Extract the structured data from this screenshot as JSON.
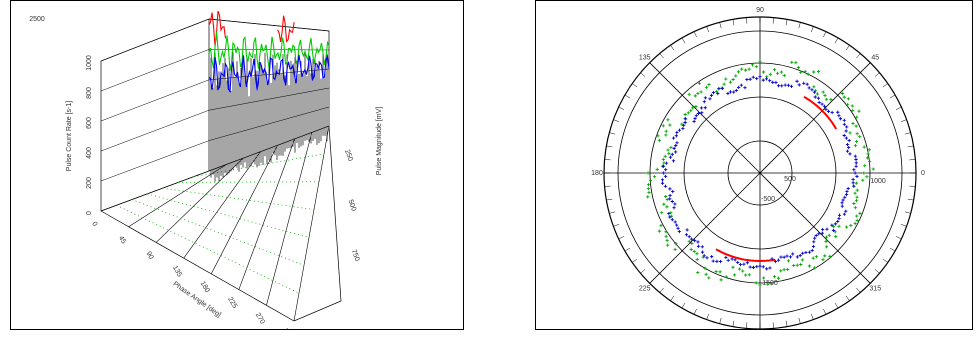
{
  "chart_data": [
    {
      "type": "3d-line",
      "title": "",
      "corner_label": "2500",
      "xlabel": "Phase Angle [deg]",
      "ylabel": "Pulse Count Rate [s-1]",
      "zlabel": "Pulse Magnitude [mV]",
      "phase_ticks": [
        "0",
        "45",
        "90",
        "135",
        "180",
        "225",
        "270",
        "315"
      ],
      "count_ticks": [
        "0",
        "200",
        "400",
        "600",
        "800",
        "1000"
      ],
      "magnitude_ticks": [
        "250",
        "500",
        "750"
      ],
      "series": [
        {
          "color": "#ff0000",
          "range": [
            0,
            45
          ],
          "base": 960
        },
        {
          "color": "#ff0000",
          "range": [
            180,
            225
          ],
          "base": 960
        },
        {
          "color": "#00cc00",
          "range": [
            0,
            315
          ],
          "base": 780
        },
        {
          "color": "#0000ff",
          "range": [
            0,
            315
          ],
          "base": 620
        }
      ]
    },
    {
      "type": "polar-scatter",
      "angle_ticks": [
        "90",
        "45",
        "0",
        "315",
        "270",
        "225",
        "180",
        "135"
      ],
      "radial_ticks": [
        "-500",
        "500",
        "1000",
        "1500"
      ],
      "series": [
        {
          "color": "#00aa00",
          "marker": "+",
          "radius": 1.18
        },
        {
          "color": "#0000cc",
          "marker": "+",
          "radius": 1.05
        },
        {
          "color": "#ff0000",
          "marker": "line",
          "radius": 1.0,
          "arcs": [
            [
              30,
              60
            ],
            [
              240,
              280
            ]
          ]
        }
      ]
    }
  ]
}
